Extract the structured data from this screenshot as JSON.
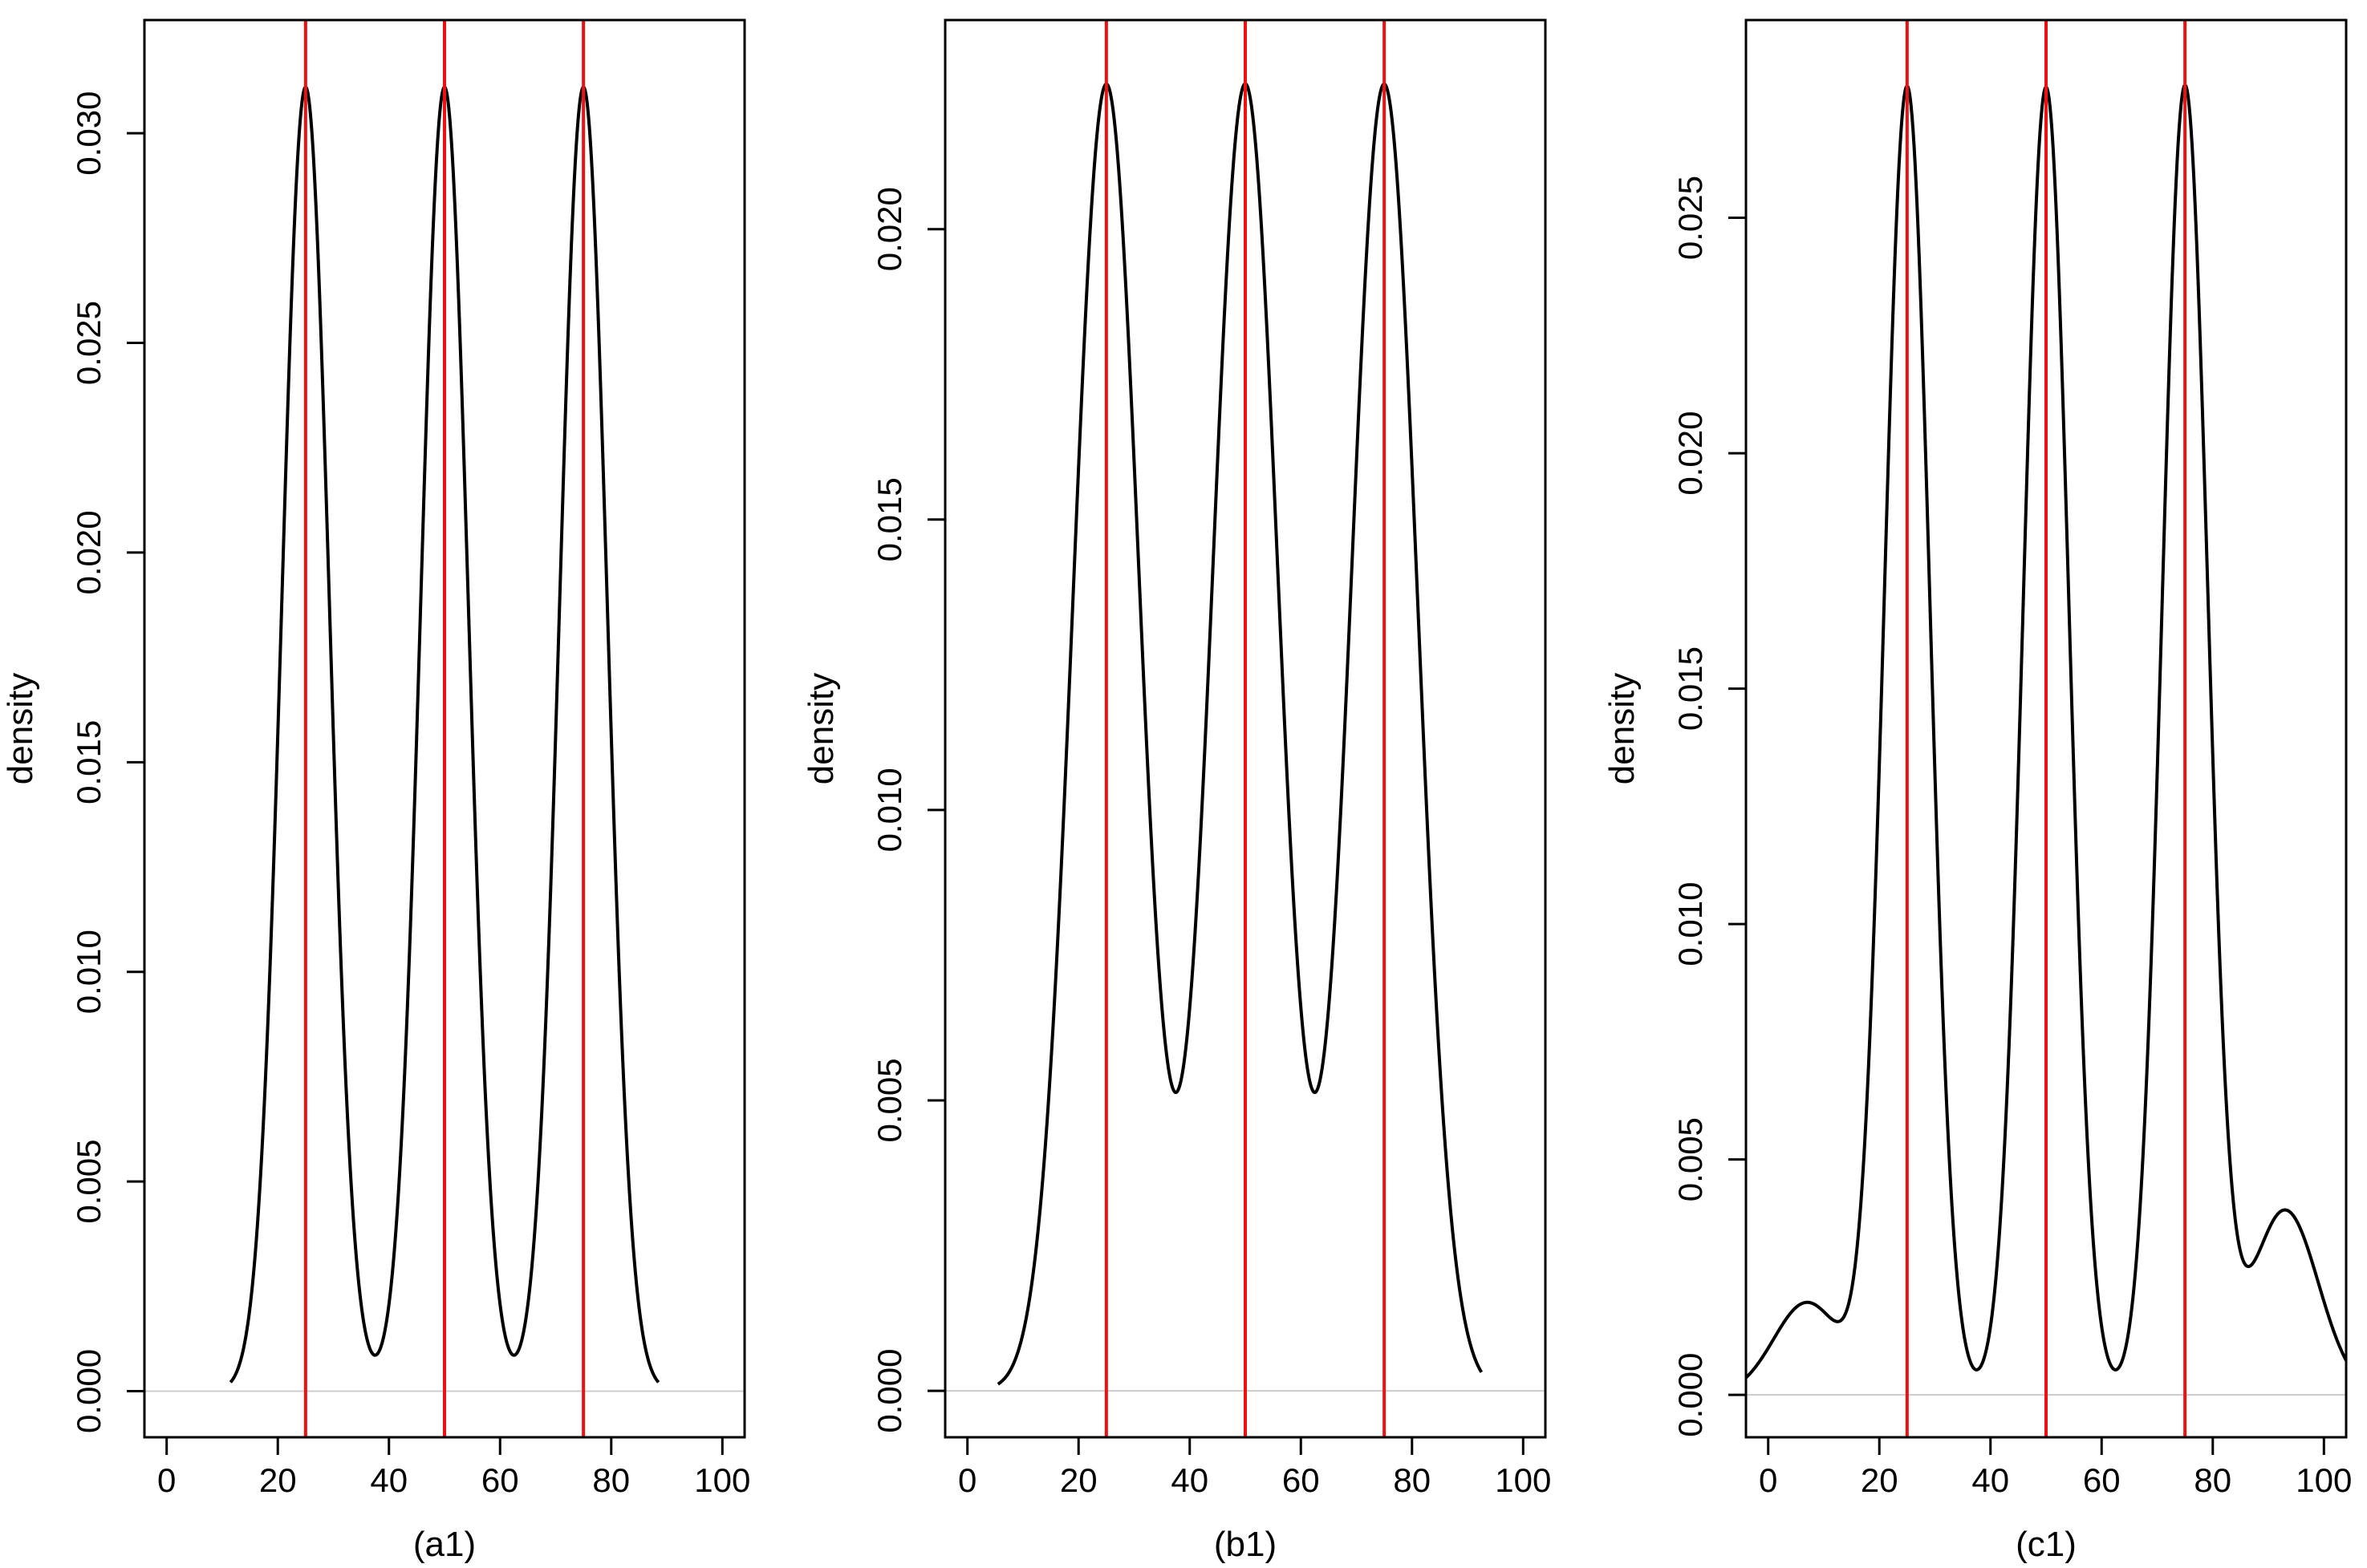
{
  "chart_data": [
    {
      "type": "line",
      "panel_label": "(a1)",
      "xlabel": "(a1)",
      "ylabel": "density",
      "xlim": [
        -4,
        104
      ],
      "ylim": [
        -0.0011,
        0.0327
      ],
      "x_ticks": [
        0,
        20,
        40,
        60,
        80,
        100
      ],
      "y_ticks": [
        0.0,
        0.005,
        0.01,
        0.015,
        0.02,
        0.025,
        0.03
      ],
      "y_tick_labels": [
        "0.000",
        "0.005",
        "0.010",
        "0.015",
        "0.020",
        "0.025",
        "0.030"
      ],
      "x_tick_labels": [
        "0",
        "20",
        "40",
        "60",
        "80",
        "100"
      ],
      "x_range": [
        11.5,
        88.5
      ],
      "mixture": {
        "means": [
          25,
          50,
          75
        ],
        "sigma": 4.27,
        "weights": [
          0.3333,
          0.3333,
          0.3333
        ]
      },
      "peak_density": 0.0311,
      "valley_density": 0.00085,
      "vertical_lines": [
        25,
        50,
        75
      ],
      "vertical_line_color": "#ee1111",
      "curve_color": "#000000",
      "baseline_color": "#cccccc"
    },
    {
      "type": "line",
      "panel_label": "(b1)",
      "xlabel": "(b1)",
      "ylabel": "density",
      "xlim": [
        -4,
        104
      ],
      "ylim": [
        -0.0008,
        0.0236
      ],
      "x_ticks": [
        0,
        20,
        40,
        60,
        80,
        100
      ],
      "y_ticks": [
        0.0,
        0.005,
        0.01,
        0.015,
        0.02
      ],
      "y_tick_labels": [
        "0.000",
        "0.005",
        "0.010",
        "0.015",
        "0.020"
      ],
      "x_tick_labels": [
        "0",
        "20",
        "40",
        "60",
        "80",
        "100"
      ],
      "x_range": [
        5.5,
        92.5
      ],
      "mixture": {
        "means": [
          25,
          50,
          75
        ],
        "sigma": 6.0,
        "weights": [
          0.3333,
          0.3333,
          0.3333
        ]
      },
      "peak_density": 0.0225,
      "valley_density": 0.0047,
      "vertical_lines": [
        25,
        50,
        75
      ],
      "vertical_line_color": "#ee1111",
      "curve_color": "#000000",
      "baseline_color": "#cccccc"
    },
    {
      "type": "line",
      "panel_label": "(c1)",
      "xlabel": "(c1)",
      "ylabel": "density",
      "xlim": [
        -4,
        104
      ],
      "ylim": [
        -0.0009,
        0.0292
      ],
      "x_ticks": [
        0,
        20,
        40,
        60,
        80,
        100
      ],
      "y_ticks": [
        0.0,
        0.005,
        0.01,
        0.015,
        0.02,
        0.025
      ],
      "y_tick_labels": [
        "0.000",
        "0.005",
        "0.010",
        "0.015",
        "0.020",
        "0.025"
      ],
      "x_tick_labels": [
        "0",
        "20",
        "40",
        "60",
        "80",
        "100"
      ],
      "x_range": [
        -4,
        104
      ],
      "mixture": {
        "means": [
          25,
          50,
          75
        ],
        "sigma": 4.1,
        "weights": [
          0.29,
          0.29,
          0.29
        ],
        "background": [
          {
            "mean": 7,
            "sigma": 6,
            "weight": 0.03
          },
          {
            "mean": 93,
            "sigma": 6,
            "weight": 0.06
          }
        ]
      },
      "peak_density": 0.0278,
      "valley_density": 0.0028,
      "vertical_lines": [
        25,
        50,
        75
      ],
      "vertical_line_color": "#ee1111",
      "curve_color": "#000000",
      "baseline_color": "#cccccc"
    }
  ]
}
